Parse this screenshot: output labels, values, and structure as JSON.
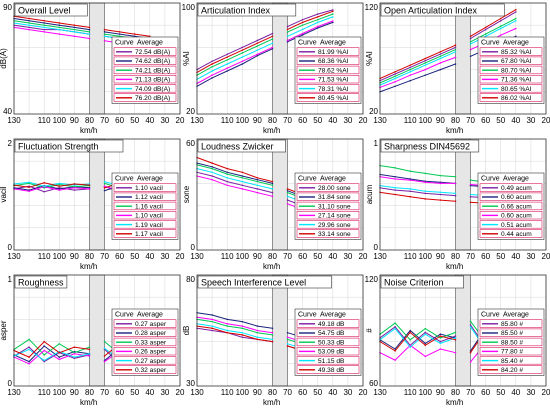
{
  "colors": {
    "series": [
      "#7b1fa2",
      "#1a237e",
      "#00c853",
      "#ff00ff",
      "#00e5ff",
      "#d50000"
    ]
  },
  "legend_header": {
    "curve": "Curve",
    "average": "Average"
  },
  "x_tick_labels": [
    "130",
    "110",
    "100",
    "90",
    "80",
    "70",
    "60",
    "50",
    "40",
    "30",
    "20"
  ],
  "chart_data": [
    {
      "type": "line",
      "title": "Overall Level",
      "ylabel": "dB(A)",
      "xlabel": "km/h",
      "ylim": [
        40,
        90
      ],
      "y_ticks": [
        "90",
        "40"
      ],
      "xlim": [
        130,
        20
      ],
      "gap": [
        80,
        70
      ],
      "x": [
        130,
        120,
        110,
        100,
        90,
        80,
        70,
        60,
        50,
        40
      ],
      "series": [
        {
          "values": [
            80,
            79,
            78,
            78,
            77,
            76,
            75,
            74,
            73,
            72
          ]
        },
        {
          "values": [
            83,
            82,
            81,
            80,
            79,
            78,
            77,
            76,
            75,
            74
          ]
        },
        {
          "values": [
            82,
            81,
            80,
            79,
            78,
            77,
            76,
            75,
            74,
            73
          ]
        },
        {
          "values": [
            79,
            78,
            77,
            76,
            75,
            74,
            73,
            72,
            71,
            70
          ]
        },
        {
          "values": [
            81,
            80,
            79,
            78,
            77,
            76,
            75,
            74,
            73,
            72
          ]
        },
        {
          "values": [
            84,
            83,
            82,
            81,
            80,
            79,
            78,
            77,
            76,
            75
          ]
        }
      ],
      "legend": [
        "72.54  dB(A)",
        "74.62  dB(A)",
        "74.21  dB(A)",
        "71.13  dB(A)",
        "74.09  dB(A)",
        "76.20  dB(A)"
      ]
    },
    {
      "type": "line",
      "title": "Articulation Index",
      "ylabel": "%AI",
      "xlabel": "km/h",
      "ylim": [
        20,
        100
      ],
      "y_ticks": [
        "100",
        "20"
      ],
      "xlim": [
        130,
        20
      ],
      "gap": [
        80,
        70
      ],
      "x": [
        130,
        120,
        110,
        100,
        90,
        80,
        70,
        60,
        50,
        40
      ],
      "series": [
        {
          "values": [
            52,
            58,
            63,
            68,
            73,
            78,
            83,
            88,
            92,
            95
          ]
        },
        {
          "values": [
            40,
            46,
            51,
            56,
            62,
            67,
            72,
            77,
            82,
            86
          ]
        },
        {
          "values": [
            48,
            54,
            59,
            64,
            69,
            74,
            79,
            84,
            88,
            92
          ]
        },
        {
          "values": [
            42,
            48,
            53,
            58,
            63,
            68,
            73,
            78,
            83,
            87
          ]
        },
        {
          "values": [
            45,
            51,
            56,
            61,
            66,
            71,
            76,
            81,
            86,
            90
          ]
        },
        {
          "values": [
            50,
            56,
            61,
            66,
            71,
            76,
            81,
            86,
            90,
            94
          ]
        }
      ],
      "legend": [
        "81.99  %AI",
        "68.36  %AI",
        "78.62  %AI",
        "71.53  %AI",
        "78.31  %AI",
        "80.45  %AI"
      ]
    },
    {
      "type": "line",
      "title": "Open Articulation Index",
      "ylabel": "%AI",
      "xlabel": "km/h",
      "ylim": [
        20,
        120
      ],
      "y_ticks": [
        "120",
        "20"
      ],
      "xlim": [
        130,
        20
      ],
      "gap": [
        80,
        70
      ],
      "x": [
        130,
        120,
        110,
        100,
        90,
        80,
        70,
        60,
        50,
        40
      ],
      "series": [
        {
          "values": [
            50,
            56,
            62,
            68,
            74,
            80,
            88,
            96,
            104,
            112
          ]
        },
        {
          "values": [
            40,
            45,
            50,
            55,
            60,
            65,
            72,
            78,
            84,
            90
          ]
        },
        {
          "values": [
            48,
            54,
            60,
            66,
            72,
            78,
            85,
            92,
            99,
            106
          ]
        },
        {
          "values": [
            44,
            49,
            55,
            60,
            66,
            71,
            78,
            84,
            91,
            97
          ]
        },
        {
          "values": [
            46,
            52,
            58,
            64,
            70,
            76,
            83,
            90,
            97,
            104
          ]
        },
        {
          "values": [
            52,
            58,
            64,
            70,
            76,
            82,
            90,
            98,
            106,
            114
          ]
        }
      ],
      "legend": [
        "85.32  %AI",
        "67.80  %AI",
        "80.70  %AI",
        "71.36  %AI",
        "80.65  %AI",
        "86.02  %AI"
      ]
    },
    {
      "type": "line",
      "title": "Fluctuation Strength",
      "ylabel": "vacil",
      "xlabel": "km/h",
      "ylim": [
        0,
        2
      ],
      "y_ticks": [
        "2",
        "0"
      ],
      "xlim": [
        130,
        20
      ],
      "gap": [
        80,
        70
      ],
      "x": [
        130,
        120,
        110,
        100,
        90,
        80,
        70,
        60,
        50,
        40
      ],
      "series": [
        {
          "values": [
            1.1,
            1.15,
            1.05,
            1.12,
            1.08,
            1.1,
            1.14,
            1.06,
            1.12,
            1.09
          ]
        },
        {
          "values": [
            1.12,
            1.08,
            1.16,
            1.1,
            1.14,
            1.12,
            1.07,
            1.15,
            1.1,
            1.13
          ]
        },
        {
          "values": [
            1.16,
            1.2,
            1.12,
            1.18,
            1.14,
            1.16,
            1.2,
            1.12,
            1.17,
            1.15
          ]
        },
        {
          "values": [
            1.1,
            1.06,
            1.14,
            1.08,
            1.12,
            1.1,
            1.15,
            1.07,
            1.11,
            1.09
          ]
        },
        {
          "values": [
            1.19,
            1.22,
            1.15,
            1.2,
            1.17,
            1.19,
            1.23,
            1.16,
            1.21,
            1.18
          ]
        },
        {
          "values": [
            1.17,
            1.13,
            1.21,
            1.15,
            1.19,
            1.17,
            1.12,
            1.2,
            1.16,
            1.18
          ]
        }
      ],
      "legend": [
        "1.10  vacil",
        "1.12  vacil",
        "1.16  vacil",
        "1.10  vacil",
        "1.19  vacil",
        "1.17  vacil"
      ]
    },
    {
      "type": "line",
      "title": "Loudness Zwicker",
      "ylabel": "sone",
      "xlabel": "km/h",
      "ylim": [
        0,
        60
      ],
      "y_ticks": [
        "60",
        "0"
      ],
      "xlim": [
        130,
        20
      ],
      "gap": [
        80,
        70
      ],
      "x": [
        130,
        120,
        110,
        100,
        90,
        80,
        70,
        60,
        50,
        40
      ],
      "series": [
        {
          "values": [
            42,
            40,
            37,
            35,
            33,
            31,
            27,
            24,
            21,
            18
          ]
        },
        {
          "values": [
            47,
            45,
            42,
            40,
            38,
            36,
            32,
            29,
            26,
            23
          ]
        },
        {
          "values": [
            46,
            44,
            41,
            39,
            37,
            35,
            31,
            28,
            25,
            22
          ]
        },
        {
          "values": [
            40,
            38,
            35,
            33,
            31,
            29,
            25,
            22,
            19,
            16
          ]
        },
        {
          "values": [
            44,
            42,
            39,
            37,
            35,
            33,
            29,
            26,
            23,
            20
          ]
        },
        {
          "values": [
            50,
            47,
            44,
            42,
            39,
            37,
            33,
            30,
            27,
            23
          ]
        }
      ],
      "legend": [
        "28.00  sone",
        "31.84  sone",
        "31.10  sone",
        "27.14  sone",
        "29.96  sone",
        "33.14  sone"
      ]
    },
    {
      "type": "line",
      "title": "Sharpness DIN45692",
      "ylabel": "acum",
      "xlabel": "km/h",
      "ylim": [
        0,
        1
      ],
      "y_ticks": [
        "1",
        "0"
      ],
      "xlim": [
        130,
        20
      ],
      "gap": [
        80,
        70
      ],
      "x": [
        130,
        120,
        110,
        100,
        90,
        80,
        70,
        60,
        50,
        40
      ],
      "series": [
        {
          "values": [
            0.56,
            0.54,
            0.53,
            0.51,
            0.5,
            0.49,
            0.48,
            0.47,
            0.46,
            0.45
          ]
        },
        {
          "values": [
            0.68,
            0.66,
            0.64,
            0.62,
            0.61,
            0.6,
            0.58,
            0.57,
            0.56,
            0.55
          ]
        },
        {
          "values": [
            0.76,
            0.74,
            0.71,
            0.69,
            0.67,
            0.66,
            0.63,
            0.61,
            0.6,
            0.58
          ]
        },
        {
          "values": [
            0.66,
            0.64,
            0.63,
            0.61,
            0.6,
            0.6,
            0.59,
            0.58,
            0.57,
            0.56
          ]
        },
        {
          "values": [
            0.58,
            0.56,
            0.55,
            0.53,
            0.52,
            0.51,
            0.5,
            0.49,
            0.48,
            0.47
          ]
        },
        {
          "values": [
            0.52,
            0.5,
            0.48,
            0.46,
            0.45,
            0.44,
            0.43,
            0.42,
            0.41,
            0.4
          ]
        }
      ],
      "legend": [
        "0.49  acum",
        "0.60  acum",
        "0.66  acum",
        "0.60  acum",
        "0.51  acum",
        "0.44  acum"
      ]
    },
    {
      "type": "line",
      "title": "Roughness",
      "ylabel": "asper",
      "xlabel": "km/h",
      "ylim": [
        0,
        1
      ],
      "y_ticks": [
        "1",
        "0"
      ],
      "xlim": [
        130,
        20
      ],
      "gap": [
        80,
        70
      ],
      "x": [
        130,
        120,
        110,
        100,
        90,
        80,
        70,
        60,
        50,
        40
      ],
      "series": [
        {
          "values": [
            0.27,
            0.35,
            0.22,
            0.3,
            0.25,
            0.28,
            0.33,
            0.21,
            0.29,
            0.26
          ]
        },
        {
          "values": [
            0.28,
            0.22,
            0.36,
            0.26,
            0.31,
            0.29,
            0.23,
            0.34,
            0.27,
            0.3
          ]
        },
        {
          "values": [
            0.33,
            0.42,
            0.28,
            0.38,
            0.3,
            0.35,
            0.4,
            0.29,
            0.36,
            0.32
          ]
        },
        {
          "values": [
            0.26,
            0.2,
            0.32,
            0.24,
            0.29,
            0.27,
            0.22,
            0.31,
            0.25,
            0.28
          ]
        },
        {
          "values": [
            0.27,
            0.33,
            0.23,
            0.31,
            0.26,
            0.29,
            0.34,
            0.24,
            0.3,
            0.27
          ]
        },
        {
          "values": [
            0.32,
            0.26,
            0.4,
            0.3,
            0.35,
            0.33,
            0.27,
            0.38,
            0.31,
            0.34
          ]
        }
      ],
      "legend": [
        "0.27  asper",
        "0.28  asper",
        "0.33  asper",
        "0.26  asper",
        "0.27  asper",
        "0.32  asper"
      ]
    },
    {
      "type": "line",
      "title": "Speech Interference Level",
      "ylabel": "dB",
      "xlabel": "km/h",
      "ylim": [
        30,
        80
      ],
      "y_ticks": [
        "80",
        "30"
      ],
      "xlim": [
        130,
        20
      ],
      "gap": [
        80,
        70
      ],
      "x": [
        130,
        120,
        110,
        100,
        90,
        80,
        70,
        60,
        50,
        40
      ],
      "series": [
        {
          "values": [
            56,
            55,
            54,
            52,
            51,
            50,
            48,
            46,
            44,
            43
          ]
        },
        {
          "values": [
            63,
            62,
            60,
            59,
            57,
            56,
            54,
            52,
            50,
            48
          ]
        },
        {
          "values": [
            60,
            59,
            57,
            56,
            54,
            53,
            51,
            49,
            47,
            45
          ]
        },
        {
          "values": [
            61,
            60,
            58,
            57,
            55,
            54,
            52,
            50,
            48,
            46
          ]
        },
        {
          "values": [
            58,
            57,
            55,
            54,
            52,
            51,
            49,
            47,
            45,
            44
          ]
        },
        {
          "values": [
            57,
            56,
            54,
            53,
            51,
            50,
            48,
            46,
            44,
            42
          ]
        }
      ],
      "legend": [
        "49.18  dB",
        "54.75  dB",
        "50.33  dB",
        "53.09  dB",
        "51.15  dB",
        "49.38  dB"
      ]
    },
    {
      "type": "line",
      "title": "Noise Criterion",
      "ylabel": "#",
      "xlabel": "km/h",
      "ylim": [
        60,
        120
      ],
      "y_ticks": [
        "120",
        "60"
      ],
      "xlim": [
        130,
        20
      ],
      "gap": [
        80,
        70
      ],
      "x": [
        130,
        120,
        110,
        100,
        90,
        80,
        70,
        60,
        50,
        40
      ],
      "series": [
        {
          "values": [
            86,
            92,
            82,
            89,
            84,
            87,
            93,
            81,
            88,
            85
          ]
        },
        {
          "values": [
            85,
            80,
            90,
            83,
            88,
            86,
            79,
            91,
            84,
            87
          ]
        },
        {
          "values": [
            88,
            94,
            85,
            91,
            86,
            89,
            95,
            84,
            90,
            87
          ]
        },
        {
          "values": [
            78,
            74,
            82,
            76,
            80,
            78,
            73,
            83,
            77,
            79
          ]
        },
        {
          "values": [
            85,
            91,
            81,
            88,
            83,
            86,
            92,
            80,
            87,
            84
          ]
        },
        {
          "values": [
            84,
            79,
            89,
            82,
            87,
            85,
            78,
            90,
            83,
            86
          ]
        }
      ],
      "legend": [
        "85.80  #",
        "85.50  #",
        "88.50  #",
        "77.80  #",
        "85.40  #",
        "84.20  #"
      ]
    }
  ]
}
